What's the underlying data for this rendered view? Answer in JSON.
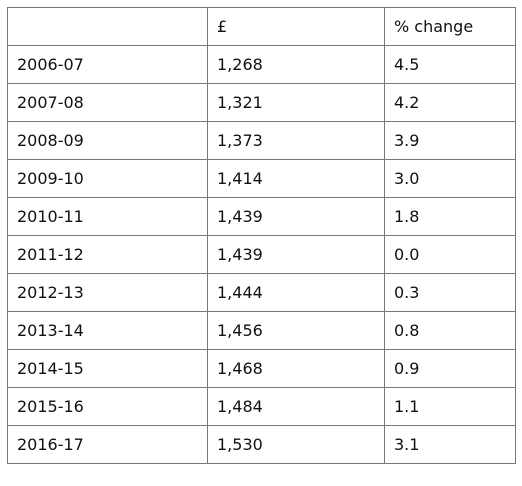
{
  "table": {
    "header": [
      "£",
      "% change"
    ],
    "rows": [
      [
        "2006-07",
        "1,268",
        "4.5"
      ],
      [
        "2007-08",
        "1,321",
        "4.2"
      ],
      [
        "2008-09",
        "1,373",
        "3.9"
      ],
      [
        "2009-10",
        "1,414",
        "3.0"
      ],
      [
        "2010-11",
        "1,439",
        "1.8"
      ],
      [
        "2011-12",
        "1,439",
        "0.0"
      ],
      [
        "2012-13",
        "1,444",
        "0.3"
      ],
      [
        "2013-14",
        "1,456",
        "0.8"
      ],
      [
        "2014-15",
        "1,468",
        "0.9"
      ],
      [
        "2015-16",
        "1,484",
        "1.1"
      ],
      [
        "2016-17",
        "1,530",
        "3.1"
      ]
    ]
  }
}
